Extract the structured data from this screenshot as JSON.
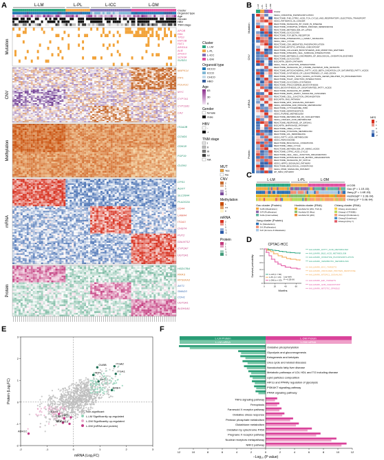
{
  "panels": {
    "a": "A",
    "b": "B",
    "c": "C",
    "d": "D",
    "e": "E",
    "f": "F"
  },
  "panelA": {
    "groups": [
      "L-LM",
      "L-PL",
      "L-ICC",
      "L-DM"
    ],
    "annotation_rows": [
      "Cluster",
      "Organoid type",
      "Age",
      "Gender",
      "HBV",
      "TNM stage"
    ],
    "sections": [
      "Mutation",
      "CNV",
      "Methylation",
      "mRNA",
      "Protein"
    ],
    "mutation_genes": [
      "APOB",
      "RB1",
      "TP53",
      "KMT2B",
      "FAT1",
      "ARID1A",
      "ALB",
      "ZFHX3",
      "SCN3A",
      "SUSD1"
    ],
    "cnv_genes": [
      "MAPK14",
      "PIP1",
      "POLR1C",
      "MYC",
      "CYP7A1",
      "CYP11B1",
      "CA2"
    ],
    "meth_genes": [
      "ITGA2B",
      "CCND1",
      "CDK18",
      "FGF19",
      "CLDN1"
    ],
    "mrna_genes": [
      "CPS1",
      "AGXT",
      "SLC26A4",
      "PLA2G2A",
      "CD44",
      "LAMA4",
      "ITGA3",
      "CHST4",
      "PUT2",
      "GALNT12",
      "CYP2A7",
      "UGT1A1"
    ],
    "protein_genes": [
      "HSD17B4",
      "RRAS",
      "RPS6KA3",
      "AKT1",
      "SMAD3",
      "CDH1",
      "UGT1A1",
      "ALDH1A1"
    ],
    "legend": {
      "cluster_title": "Cluster",
      "cluster_items": [
        "L-LM",
        "L-PL",
        "L-ICC",
        "L-DM"
      ],
      "organoid_title": "Organoid type",
      "organoid_items": [
        "HCCO",
        "ICCO",
        "CHCO",
        "HBO"
      ],
      "age_title": "Age",
      "age_ticks": [
        "83",
        "30",
        "0"
      ],
      "gender_title": "Gender",
      "gender_items": [
        "female",
        "male"
      ],
      "hbv_title": "HBV",
      "hbv_items": [
        "-",
        "+"
      ],
      "tnm_title": "TNM stage",
      "tnm_items": [
        "I",
        "II",
        "III",
        "IV",
        "NA"
      ],
      "mut_title": "MUT",
      "mut_items": [
        "Yes",
        "No"
      ],
      "cnv_title": "CNV",
      "cnv_ticks": [
        "2",
        "1",
        "0",
        "-1",
        "-2"
      ],
      "meth_title": "Methylation",
      "meth_ticks": [
        "1",
        "0.5",
        "0"
      ],
      "mrna_title": "mRNA",
      "mrna_ticks": [
        "2",
        "1",
        "0",
        "-1",
        "-2"
      ],
      "protein_title": "Protein",
      "protein_ticks": [
        "2",
        "1",
        "0",
        "-1",
        "-2"
      ]
    }
  },
  "panelB": {
    "header": [
      "L-LM",
      "L-PL",
      "L-ICC",
      "L-DM"
    ],
    "header_row_label": "Cluster",
    "section_labels": [
      "Mutation",
      "CNV",
      "mRNA",
      "Protein"
    ],
    "pathways": [
      "KEGG_OXIDATIVE_PHOSPHORYLATION",
      "REACTOME_THE_CITRIC_ACID_TCA_CYCLE_AND_RESPIRATORY_ELECTRON_TRANSPORT",
      "KEGG_PATHWAYS_IN_CANCER",
      "REACTOME_SIGNALING_BY_FGFR_IN_DISEASE",
      "REACTOME_OXIDATIVE_STRESS_INDUCED_SENESCENCE",
      "REACTOME_METABOLISM_OF_LIPIDS",
      "REACTOME_GLYCOLYSIS",
      "REACTOME_TGF_BETA_RECEPTOR",
      "REACTOME_INTERLEUKIN_1_FAMILY_SIGNALING",
      "KEGG_CELL_CYCLE",
      "REACTOME_CDK_MEDIATED_PHOSPHORYLATION",
      "REACTOME_MITOTIC_SPINDLE_CHECKPOINT",
      "REACTOME_COLLAGEN_BIOSYNTHESIS_AND_MODIFYING_ENZYMES",
      "REACTOME_INTEGRIN_CELL_SURFACE_INTERACTIONS",
      "REACTOME_METABOLIC_DISORDERS_OF_BIOLOGICAL_OXIDATION_ENZYMES",
      "REACTOME_GLYCOLYSIS",
      "BIOCARTA_DEATH_PATHWAY",
      "KEGG_TIGHT_JUNCTION_INTERACTIONS",
      "REACTOME_SIGNALING_BY_CTNNB1_PHOSPHO_SITE_MUTANTS",
      "REACTOME_MITOCHONDRIAL_FATTY_ACID_BETA_OXIDATION_OF_SATURATED_FATTY_ACIDS",
      "REACTOME_SYNTHESIS_OF_LEUKOTRIENES_LT_AND_EOXIN",
      "REACTOME_POU5F1_SOX2_NANOG_ACTIVATE_GENES_RELATED_TO_PROLIFERATION",
      "REACTOME_TIGHT_JUNCTION_INTERACTIONS",
      "REACTOME_GLYCOGEN_SYNTHESIS",
      "REACTOME_TRIGLYCERIDE_BIOSYNTHESIS",
      "KEGG_BIOSYNTHESIS_OF_UNSATURATED_FATTY_ACIDS",
      "REACTOME_SIGNALING_BY_ERBB4",
      "REACTOME_MAPK_FAMILY_SIGNALING_CASCADES",
      "REACTOME_CELL_JUNCTION_ORGANIZATION",
      "BIOCARTA_RAS_PATHWAY",
      "REACTOME_WNT_SIGNALING_PATHWAY",
      "KEGG_ARGININE_AND_PROLINE_METABOLISM",
      "REACTOME_CYTOCHROME_P450",
      "REACTOME_KERATINIZATION",
      "KEGG_PURINE_METABOLISM",
      "REACTOME_METABOLISM_OF_NUCLEOTIDES",
      "KEGG_LINOLEIC_ACID_METABOLISM",
      "REACTOME_RESPONSE_OF_EIF2AK1",
      "BIOCARTA_MAPKINASE_PATHWAY",
      "REACTOME_UREA_CYCLE",
      "REACTOME_PYRUVATE_METABOLISM",
      "REACTOME_LDL_REMODELING",
      "KEGG_FATTY_ACID_METABOLISM",
      "KEGG_PEROXISOME",
      "REACTOME_BIOLOGICAL_OXIDATIONS",
      "REACTOME_UREA_CYCLE",
      "REACTOME_METABOLISM_OF_AMINO_ACIDS",
      "REACTOME_CITRIC_ACID_CYCLE",
      "REACTOME_CELL_CELL_JUNCTION_ORGANIZATION",
      "REACTOME_EXTRACELLULAR_MATRIX_ORGANIZATION",
      "REACTOME_SIGNALING_BY_NOTCH",
      "KEGG_HIPPO_SIGNALING_PATHWAY",
      "REACTOME_BIOLOGICAL_OXIDATIONS",
      "KEGG_PPAR_SIGNALING_PATHWAY",
      "HP_NRF2_PATHWAY"
    ],
    "nes_title": "NES",
    "nes_ticks": [
      "2",
      "1",
      "0",
      "-1",
      "-2"
    ]
  },
  "panelC": {
    "header": [
      "L-LM",
      "L-PL",
      "L-DM"
    ],
    "rows": [
      {
        "name": "LICOB",
        "label": "LICOB"
      },
      {
        "name": "Gao",
        "label": "Gao (P = 1.1E-03)"
      },
      {
        "name": "Jiang",
        "label": "Jiang (P = 1.6E-03)"
      },
      {
        "name": "Hoshida",
        "label": "Hoshida(P = 3.3E-04)"
      },
      {
        "name": "Chiang",
        "label": "Chiang (P = 5.0E-04)"
      }
    ],
    "legend_columns": [
      {
        "title": "Gao cluster (Protein)",
        "items": [
          "S-Mb (Metabolism)",
          "S-Pf (Proliferation)",
          "S-Me (Intermediate)"
        ],
        "colors": [
          "#f4a640",
          "#8a63a9",
          "#61b5a1"
        ]
      },
      {
        "title": "Hoshida cluster (RNA)",
        "items": [
          "Hoshida S1 (Wnt, TGF-β)",
          "Hoshida S2 (Myc)",
          "Hoshida S3 (p53)"
        ],
        "colors": [
          "#e4b21f",
          "#8abf6a",
          "#f08a3c"
        ]
      },
      {
        "title": "Chiang cluster (RNA)",
        "items": [
          "Chiang unannotated",
          "Chiang1 (CTNNB1)",
          "Chiang2 (Proliferation)",
          "Chiang3 (Interferon)",
          "Chiang4 (Poly 7)"
        ],
        "colors": [
          "#f6d34a",
          "#b7d95a",
          "#f6a070",
          "#4a8fc7",
          "#e05a66"
        ]
      },
      {
        "title": "Jiang cluster (Protein)",
        "items": [
          "S-I (Metabolism)",
          "S-II (Proliferation)",
          "S-III (Immune & Metastasis)"
        ],
        "colors": [
          "#2a6fb5",
          "#f08d72",
          "#a8c8e5"
        ]
      }
    ]
  },
  "panelD": {
    "title": "CPTAC-HCC",
    "ylabel": "Survival probability",
    "xlabel": "Months",
    "xticks": [
      "0",
      "20",
      "40",
      "60"
    ],
    "yticks": [
      "0",
      "0.2",
      "0.4",
      "0.6",
      "0.8",
      "1.0"
    ],
    "legend": [
      "L-LM (n = 62)",
      "L-PL (n = 24)",
      "L-DM (n = 53)"
    ],
    "logrank_label": "Log-rank",
    "p_value": "P = 6.2E-06",
    "hallmarks": [
      "HALLMARK_FATTY_ACID_METABOLISM",
      "HALLMARK_BILE_ACID_METABOLISM",
      "HALLMARK_OXIDATIVE_PHOSPHORYLATION",
      "HALLMARK_XENOBIOTIC_METABOLISM",
      "HALLMARK_MYC_TARGETS",
      "HALLMARK_UNFOLDED_PROTEIN_RESPONSE",
      "HALLMARK_MTORC1_SIGNALING",
      "HALLMARK_E2F_TARGETS",
      "HALLMARK_G2M_CHECKPOINT",
      "HALLMARK_MITOTIC_SPINDLE"
    ]
  },
  "chart_data": [
    {
      "type": "line",
      "title": "CPTAC-HCC",
      "xlabel": "Months",
      "ylabel": "Survival probability",
      "xlim": [
        0,
        70
      ],
      "ylim": [
        0,
        1
      ],
      "series": [
        {
          "name": "L-LM (n = 62)",
          "x": [
            0,
            8,
            15,
            22,
            28,
            35,
            42,
            50,
            58,
            68
          ],
          "y": [
            1.0,
            0.98,
            0.96,
            0.95,
            0.93,
            0.92,
            0.9,
            0.89,
            0.88,
            0.87
          ]
        },
        {
          "name": "L-PL (n = 24)",
          "x": [
            0,
            6,
            12,
            18,
            26,
            34,
            42,
            50,
            60,
            68
          ],
          "y": [
            1.0,
            0.96,
            0.92,
            0.86,
            0.8,
            0.76,
            0.72,
            0.7,
            0.68,
            0.67
          ]
        },
        {
          "name": "L-DM (n = 53)",
          "x": [
            0,
            4,
            9,
            14,
            20,
            26,
            32,
            40,
            50,
            62,
            68
          ],
          "y": [
            1.0,
            0.9,
            0.8,
            0.7,
            0.62,
            0.56,
            0.51,
            0.47,
            0.44,
            0.42,
            0.41
          ]
        }
      ]
    },
    {
      "type": "scatter",
      "xlabel": "mRNA (Log₂FC)",
      "ylabel": "Protein (Log₂FC)",
      "xlim": [
        -2,
        3
      ],
      "ylim": [
        -2,
        3
      ],
      "legend": [
        "Non-significant",
        "L-LM Significantly up-regulated",
        "L-DM Significantly up-regulated",
        "L-DM (mRNA and protein)"
      ],
      "labeled_points": [
        {
          "label": "GUBB",
          "x": 0.9,
          "y": 1.6
        },
        {
          "label": "ITGA2",
          "x": 1.55,
          "y": 1.65
        },
        {
          "label": "ITGA1",
          "x": 1.6,
          "y": 1.3
        },
        {
          "label": "TPP1",
          "x": 0.75,
          "y": 1.25
        },
        {
          "label": "SLC",
          "x": 0.95,
          "y": 0.95
        },
        {
          "label": "ERF4",
          "x": 1.45,
          "y": 0.55
        },
        {
          "label": "G6PD",
          "x": -0.1,
          "y": -0.7
        },
        {
          "label": "GCLM",
          "x": -0.55,
          "y": -0.55
        },
        {
          "label": "CBR1",
          "x": -0.35,
          "y": -0.75
        },
        {
          "label": "ME1",
          "x": -0.4,
          "y": -0.95
        },
        {
          "label": "AKR1B15",
          "x": -0.15,
          "y": -1.0
        },
        {
          "label": "ADH1C",
          "x": -1.7,
          "y": -1.45
        }
      ],
      "xticks": [
        "-2",
        "-1",
        "0",
        "1",
        "2",
        "3"
      ],
      "yticks": [
        "-2",
        "-1",
        "0",
        "1",
        "2",
        "3"
      ]
    },
    {
      "type": "bar",
      "xlabel": "−Log₁₀ (P value)",
      "xticks_left": [
        "12",
        "10",
        "8",
        "6",
        "4",
        "2",
        "0"
      ],
      "xticks_right": [
        "2",
        "4",
        "6",
        "8",
        "10",
        "12"
      ],
      "header_left": [
        "L-LM Protein",
        "L-LM mRNA"
      ],
      "header_right": [
        "L-DM Protein",
        "L-DM mRNA"
      ],
      "categories": [
        "Oxidative phosphorylation",
        "Glycolysis and gluconeogenesis",
        "Ketogenesis and ketolysis",
        "Urea cycle and related diseases",
        "Nonalcoholic fatty liver disease",
        "Metabolic pathways of LDL HDL and TG including disease",
        "Lipid particles composition",
        "HIF1α and PPARγ regulation of glycolysis",
        "PI3KAKT signaling pathway",
        "PPAR signaling pathway",
        "TNFα signaling pathway",
        "Ferroptosis",
        "Farnesoid X receptor pathway",
        "Oxidative stress response",
        "Pentose phosphate metabolism",
        "Glutathione metabolism",
        "Oxidation by cytochrome P450",
        "Pregnane X receptor pathway",
        "Nuclear receptors metapathway",
        "NRF2 pathway"
      ],
      "series": [
        {
          "name": "L-LM Protein",
          "values": [
            12.0,
            3.8,
            3.5,
            3.2,
            3.0,
            2.4,
            2.2,
            1.9,
            1.6,
            1.4,
            0,
            0,
            0,
            0,
            0,
            0,
            0,
            0,
            0,
            0
          ]
        },
        {
          "name": "L-LM mRNA",
          "values": [
            10.5,
            3.4,
            2.8,
            2.5,
            2.6,
            2.0,
            1.8,
            1.5,
            1.3,
            1.0,
            0,
            0,
            0,
            0,
            0,
            0,
            0,
            0,
            0,
            0
          ]
        },
        {
          "name": "L-DM Protein",
          "values": [
            0,
            0,
            0,
            0,
            0,
            0,
            0,
            0,
            0,
            0,
            1.6,
            1.9,
            2.2,
            2.6,
            3.8,
            4.6,
            6.4,
            7.6,
            9.8,
            11.2
          ]
        },
        {
          "name": "L-DM mRNA",
          "values": [
            0,
            0,
            0,
            0,
            0,
            0,
            0,
            0,
            0,
            0,
            1.3,
            1.6,
            1.9,
            2.3,
            3.4,
            4.2,
            5.8,
            7.0,
            9.1,
            10.5
          ]
        }
      ]
    }
  ],
  "colors": {
    "llm": "#2aa57f",
    "lpl": "#f2a54a",
    "licc": "#7f6fb6",
    "ldm": "#e04f9f",
    "nonsig": "#bdbdbd",
    "llm_up": "#8fd1b6",
    "ldm_up": "#e8a9cb",
    "ldm_both": "#c23b87",
    "bar_llm_protein": "#2a9d76",
    "bar_llm_mrna": "#79c7a8",
    "bar_ldm_protein": "#d9439a",
    "bar_ldm_mrna": "#efa0c9"
  }
}
